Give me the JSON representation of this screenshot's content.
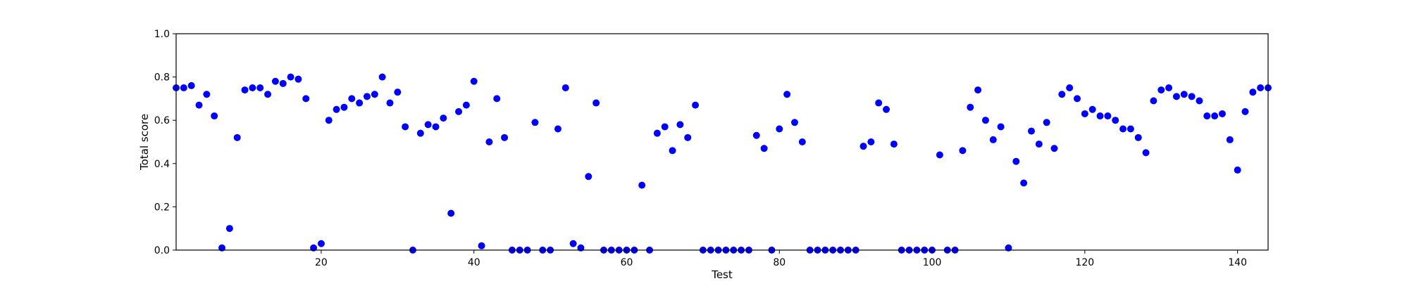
{
  "chart_data": {
    "type": "scatter",
    "xlabel": "Test",
    "ylabel": "Total score",
    "xlim": [
      1,
      144
    ],
    "ylim": [
      0.0,
      1.0
    ],
    "xticks": [
      20,
      40,
      60,
      80,
      100,
      120,
      140
    ],
    "yticks": [
      "0.0",
      "0.2",
      "0.4",
      "0.6",
      "0.8",
      "1.0"
    ],
    "grid": false,
    "marker_color": "#0000ff",
    "series": [
      {
        "x": [
          1,
          2,
          3,
          4,
          5,
          6,
          7,
          8,
          9,
          10,
          11,
          12,
          13,
          14,
          15,
          16,
          17,
          18,
          19,
          20,
          21,
          22,
          23,
          24,
          25,
          26,
          27,
          28,
          29,
          30,
          31,
          32,
          33,
          34,
          35,
          36,
          37,
          38,
          39,
          40,
          41,
          42,
          43,
          44,
          45,
          46,
          47,
          48,
          49,
          50,
          51,
          52,
          53,
          54,
          55,
          56,
          57,
          58,
          59,
          60,
          61,
          62,
          63,
          64,
          65,
          66,
          67,
          68,
          69,
          70,
          71,
          72,
          73,
          74,
          75,
          76,
          77,
          78,
          79,
          80,
          81,
          82,
          83,
          84,
          85,
          86,
          87,
          88,
          89,
          90,
          91,
          92,
          93,
          94,
          95,
          96,
          97,
          98,
          99,
          100,
          101,
          102,
          103,
          104,
          105,
          106,
          107,
          108,
          109,
          110,
          111,
          112,
          113,
          114,
          115,
          116,
          117,
          118,
          119,
          120,
          121,
          122,
          123,
          124,
          125,
          126,
          127,
          128,
          129,
          130,
          131,
          132,
          133,
          134,
          135,
          136,
          137,
          138,
          139,
          140,
          141,
          142,
          143,
          144
        ],
        "y": [
          0.75,
          0.75,
          0.76,
          0.67,
          0.72,
          0.62,
          0.01,
          0.1,
          0.52,
          0.74,
          0.75,
          0.75,
          0.72,
          0.78,
          0.77,
          0.8,
          0.79,
          0.7,
          0.01,
          0.03,
          0.6,
          0.65,
          0.66,
          0.7,
          0.68,
          0.71,
          0.72,
          0.8,
          0.68,
          0.73,
          0.57,
          0.0,
          0.54,
          0.58,
          0.57,
          0.61,
          0.17,
          0.64,
          0.67,
          0.78,
          0.02,
          0.5,
          0.7,
          0.52,
          0.0,
          0.0,
          0.0,
          0.59,
          0.0,
          0.0,
          0.56,
          0.75,
          0.03,
          0.01,
          0.34,
          0.68,
          0.0,
          0.0,
          0.0,
          0.0,
          0.0,
          0.3,
          0.0,
          0.54,
          0.57,
          0.46,
          0.58,
          0.52,
          0.67,
          0.0,
          0.0,
          0.0,
          0.0,
          0.0,
          0.0,
          0.0,
          0.53,
          0.47,
          0.0,
          0.56,
          0.72,
          0.59,
          0.5,
          0.0,
          0.0,
          0.0,
          0.0,
          0.0,
          0.0,
          0.0,
          0.48,
          0.5,
          0.68,
          0.65,
          0.49,
          0.0,
          0.0,
          0.0,
          0.0,
          0.0,
          0.44,
          0.0,
          0.0,
          0.46,
          0.66,
          0.74,
          0.6,
          0.51,
          0.57,
          0.01,
          0.41,
          0.31,
          0.55,
          0.49,
          0.59,
          0.47,
          0.72,
          0.75,
          0.7,
          0.63,
          0.65,
          0.62,
          0.62,
          0.6,
          0.56,
          0.56,
          0.52,
          0.45,
          0.69,
          0.74,
          0.75,
          0.71,
          0.72,
          0.71,
          0.69,
          0.62,
          0.62,
          0.63,
          0.51,
          0.37,
          0.64,
          0.73,
          0.75,
          0.75
        ]
      }
    ]
  }
}
